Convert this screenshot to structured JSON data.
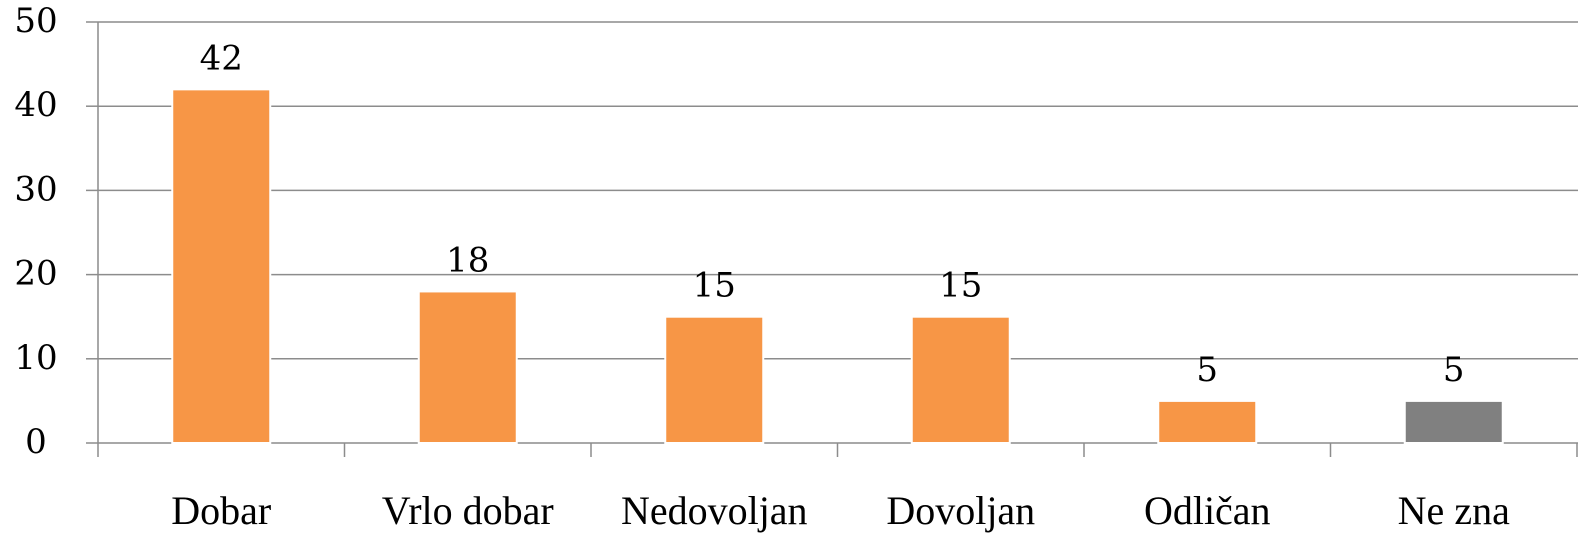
{
  "chart_data": {
    "type": "bar",
    "categories": [
      "Dobar",
      "Vrlo dobar",
      "Nedovoljan",
      "Dovoljan",
      "Odličan",
      "Ne zna"
    ],
    "values": [
      42,
      18,
      15,
      15,
      5,
      5
    ],
    "data_labels": [
      "42",
      "18",
      "15",
      "15",
      "5",
      "5"
    ],
    "bar_colors": [
      "#F79646",
      "#F79646",
      "#F79646",
      "#F79646",
      "#F79646",
      "#808080"
    ],
    "yticks": [
      0,
      10,
      20,
      30,
      40,
      50
    ],
    "ytick_labels": [
      "0",
      "10",
      "20",
      "30",
      "40",
      "50"
    ],
    "ylim": [
      0,
      50
    ],
    "grid": true,
    "legend": "none",
    "title": "",
    "xlabel": "",
    "ylabel": ""
  }
}
